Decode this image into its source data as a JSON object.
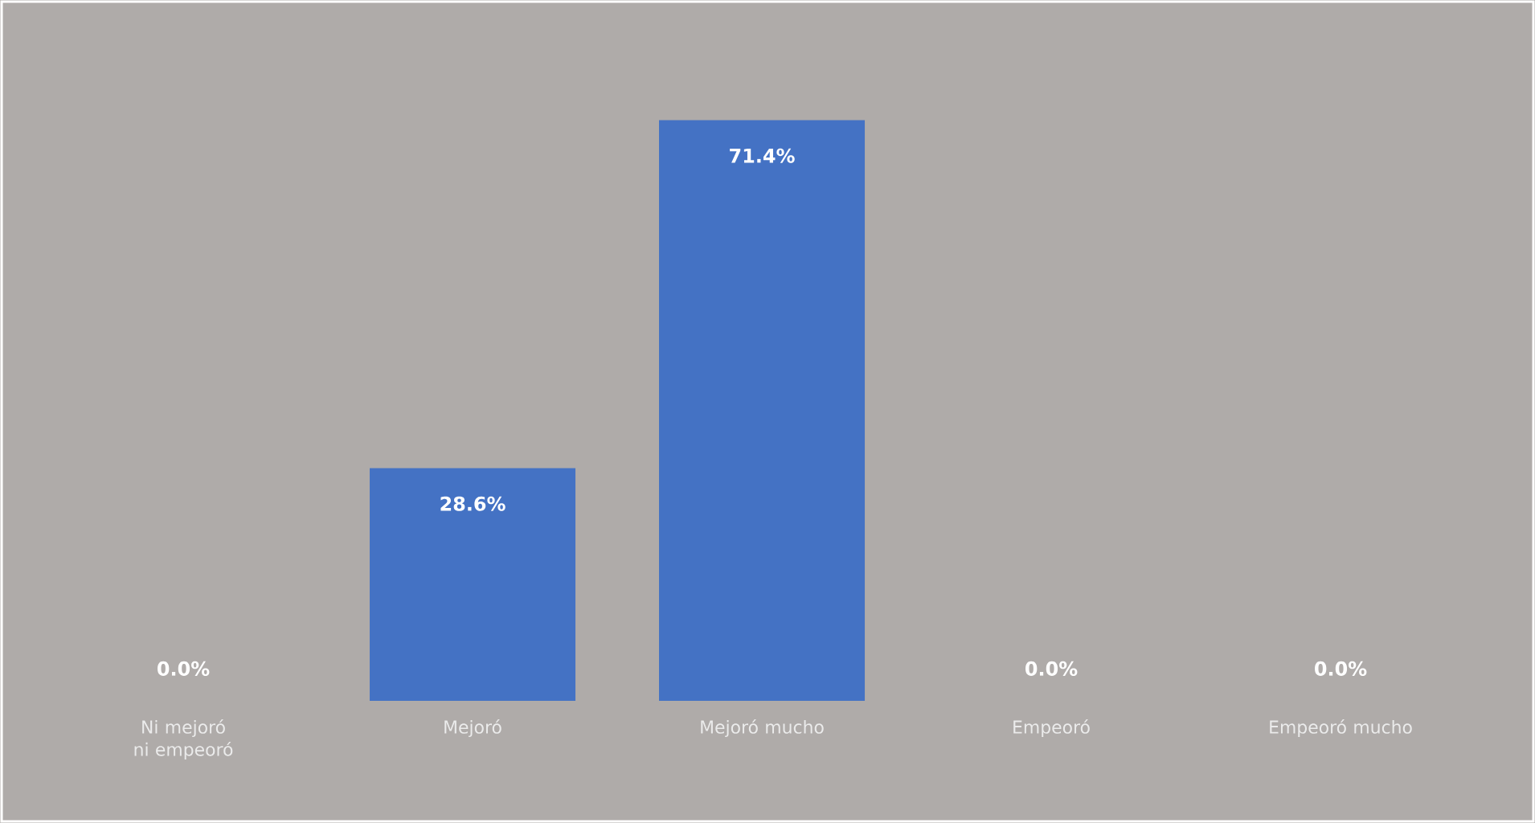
{
  "chart_data": {
    "type": "bar",
    "categories": [
      "Ni mejoró ni empeoró",
      "Mejoró",
      "Mejoró mucho",
      "Empeoró",
      "Empeoró mucho"
    ],
    "values": [
      0,
      28.6,
      71.4,
      0,
      0
    ],
    "value_labels": [
      "0.0%",
      "28.6%",
      "71.4%",
      "0.0%",
      "0.0%"
    ],
    "color": "#4472c4"
  }
}
